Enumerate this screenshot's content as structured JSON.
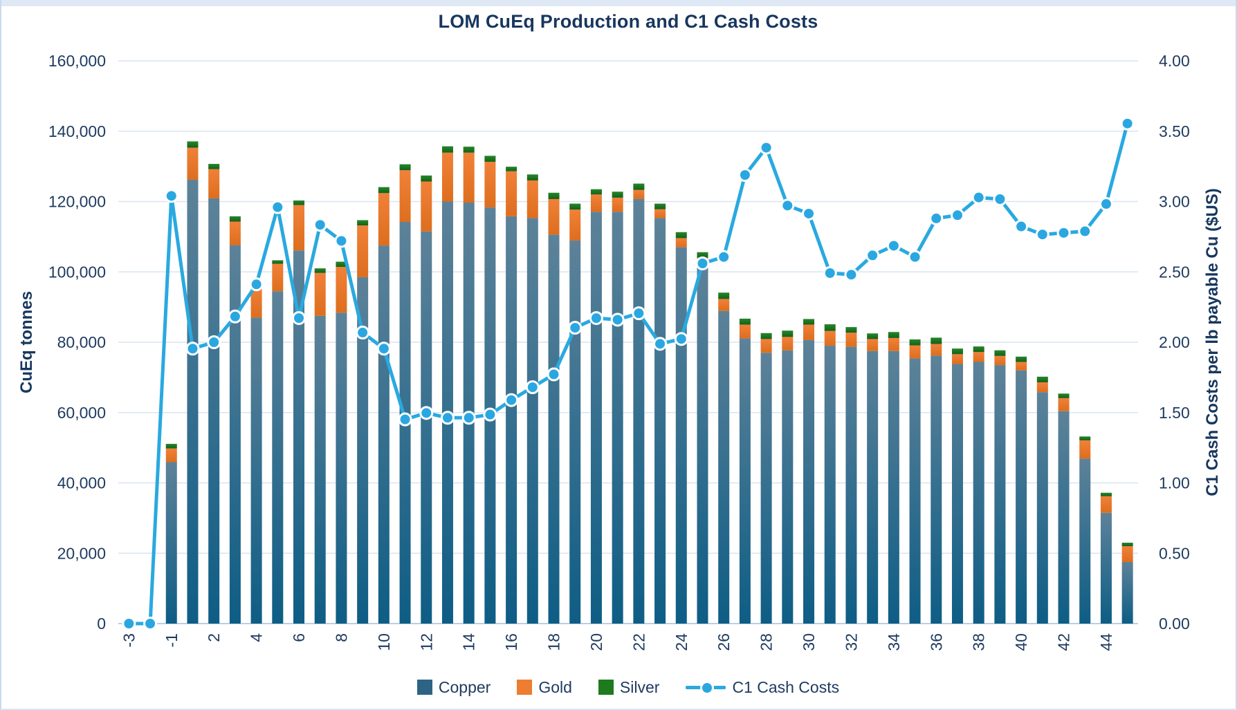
{
  "title": "LOM CuEq Production and C1 Cash Costs",
  "chart_data": {
    "type": "bar",
    "subtype": "stacked-bars-with-secondary-line",
    "title": "LOM CuEq Production and C1 Cash Costs",
    "xlabel": "",
    "ylabel_left": "CuEq tonnes",
    "ylabel_right": "C1 Cash Costs per lb payable Cu ($US)",
    "y_left_min": 0,
    "y_left_max": 160000,
    "y_left_step": 20000,
    "y_right_min": 0,
    "y_right_max": 3.5,
    "y_right_step": 0.5,
    "grid": true,
    "legend_position": "bottom",
    "x_labels_every": 2,
    "categories": [
      "-3",
      "-2",
      "-1",
      "1",
      "2",
      "3",
      "4",
      "5",
      "6",
      "7",
      "8",
      "9",
      "10",
      "11",
      "12",
      "13",
      "14",
      "15",
      "16",
      "17",
      "18",
      "19",
      "20",
      "21",
      "22",
      "23",
      "24",
      "25",
      "26",
      "27",
      "28",
      "29",
      "30",
      "31",
      "32",
      "33",
      "34",
      "35",
      "36",
      "37",
      "38",
      "39",
      "40",
      "41",
      "42",
      "43",
      "44",
      "45"
    ],
    "series": [
      {
        "name": "Copper",
        "type": "bar",
        "axis": "left",
        "values": [
          0,
          0,
          45900,
          126200,
          120900,
          107600,
          87000,
          94500,
          106100,
          87500,
          88400,
          98500,
          107500,
          114200,
          111500,
          120000,
          119700,
          118300,
          115800,
          115300,
          110600,
          108900,
          117100,
          117100,
          120700,
          115300,
          107000,
          101400,
          88900,
          81100,
          77000,
          77700,
          80600,
          79000,
          78700,
          77500,
          77500,
          75400,
          76200,
          73800,
          74400,
          73500,
          72000,
          65800,
          60400,
          46900,
          31500,
          17500
        ]
      },
      {
        "name": "Gold",
        "type": "bar",
        "axis": "left",
        "values": [
          0,
          0,
          3900,
          9100,
          8300,
          6700,
          9200,
          7800,
          12900,
          12200,
          13000,
          14700,
          14900,
          14700,
          14200,
          13900,
          14200,
          13000,
          12800,
          10700,
          10100,
          8800,
          4900,
          4000,
          2600,
          2500,
          2600,
          2600,
          3400,
          3900,
          3900,
          3800,
          4400,
          4200,
          4000,
          3400,
          3700,
          3700,
          3300,
          2800,
          2800,
          2600,
          2400,
          2800,
          3700,
          5200,
          4700,
          4500
        ]
      },
      {
        "name": "Silver",
        "type": "bar",
        "axis": "left",
        "values": [
          0,
          0,
          1300,
          1800,
          1500,
          1500,
          1300,
          1000,
          1300,
          1300,
          1500,
          1500,
          1700,
          1700,
          1700,
          1800,
          1700,
          1700,
          1300,
          1700,
          1800,
          1700,
          1500,
          1700,
          1800,
          1600,
          1700,
          1600,
          1800,
          1700,
          1700,
          1800,
          1600,
          1900,
          1600,
          1600,
          1700,
          1700,
          1800,
          1600,
          1600,
          1600,
          1500,
          1600,
          1300,
          1100,
          1000,
          1000
        ]
      },
      {
        "name": "C1 Cash Costs",
        "type": "line",
        "axis": "right",
        "values": [
          0.0,
          0.0,
          2.66,
          1.71,
          1.75,
          1.91,
          2.11,
          2.59,
          1.9,
          2.48,
          2.38,
          1.81,
          1.71,
          1.27,
          1.31,
          1.28,
          1.28,
          1.3,
          1.39,
          1.47,
          1.55,
          1.84,
          1.9,
          1.89,
          1.93,
          1.74,
          1.77,
          2.24,
          2.28,
          2.79,
          2.96,
          2.6,
          2.55,
          2.18,
          2.17,
          2.29,
          2.35,
          2.28,
          2.52,
          2.54,
          2.65,
          2.64,
          2.47,
          2.42,
          2.43,
          2.44,
          2.61,
          3.11
        ]
      }
    ],
    "legend": [
      "Copper",
      "Gold",
      "Silver",
      "C1 Cash Costs"
    ],
    "colors": {
      "copper_top": "#5d8299",
      "copper_bottom": "#0e5d85",
      "copper_legend": "#2d6484",
      "gold_top": "#f08138",
      "gold_bottom": "#dd6e1e",
      "gold_legend": "#ed7d31",
      "silver_top": "#24882a",
      "silver_bottom": "#166018",
      "silver_legend": "#1e7a1e",
      "line": "#29a9e0",
      "marker": "#2aa7e1",
      "marker_ring": "#ffffff",
      "grid": "#d9e4f1",
      "axis_line": "#b9cfe5",
      "text": "#1f3b60",
      "title_text": "#17375e"
    }
  }
}
